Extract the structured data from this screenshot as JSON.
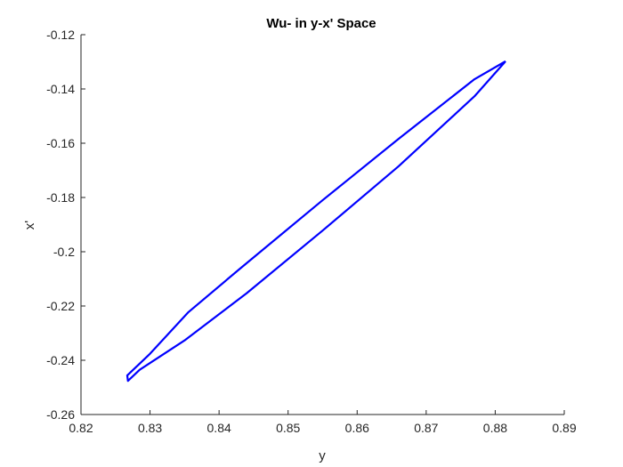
{
  "chart_data": {
    "type": "line",
    "title": "Wu- in y-x' Space",
    "xlabel": "y",
    "ylabel": "x'",
    "xlim": [
      0.82,
      0.89
    ],
    "ylim": [
      -0.26,
      -0.12
    ],
    "xticks": [
      0.82,
      0.83,
      0.84,
      0.85,
      0.86,
      0.87,
      0.88,
      0.89
    ],
    "xtick_labels": [
      "0.82",
      "0.83",
      "0.84",
      "0.85",
      "0.86",
      "0.87",
      "0.88",
      "0.89"
    ],
    "yticks": [
      -0.26,
      -0.24,
      -0.22,
      -0.2,
      -0.18,
      -0.16,
      -0.14,
      -0.12
    ],
    "ytick_labels": [
      "-0.26",
      "-0.24",
      "-0.22",
      "-0.2",
      "-0.18",
      "-0.16",
      "-0.14",
      "-0.12"
    ],
    "grid": false,
    "legend": "none",
    "series": [
      {
        "color": "#0000ff",
        "x": [
          0.8815,
          0.877,
          0.866,
          0.855,
          0.843,
          0.8355,
          0.83,
          0.8267,
          0.8268,
          0.8285,
          0.835,
          0.844,
          0.855,
          0.866,
          0.877,
          0.8815
        ],
        "y": [
          -0.1298,
          -0.1364,
          -0.1584,
          -0.181,
          -0.2063,
          -0.2224,
          -0.2376,
          -0.2456,
          -0.2476,
          -0.2435,
          -0.2327,
          -0.2153,
          -0.1922,
          -0.1685,
          -0.1427,
          -0.1298
        ]
      }
    ]
  }
}
